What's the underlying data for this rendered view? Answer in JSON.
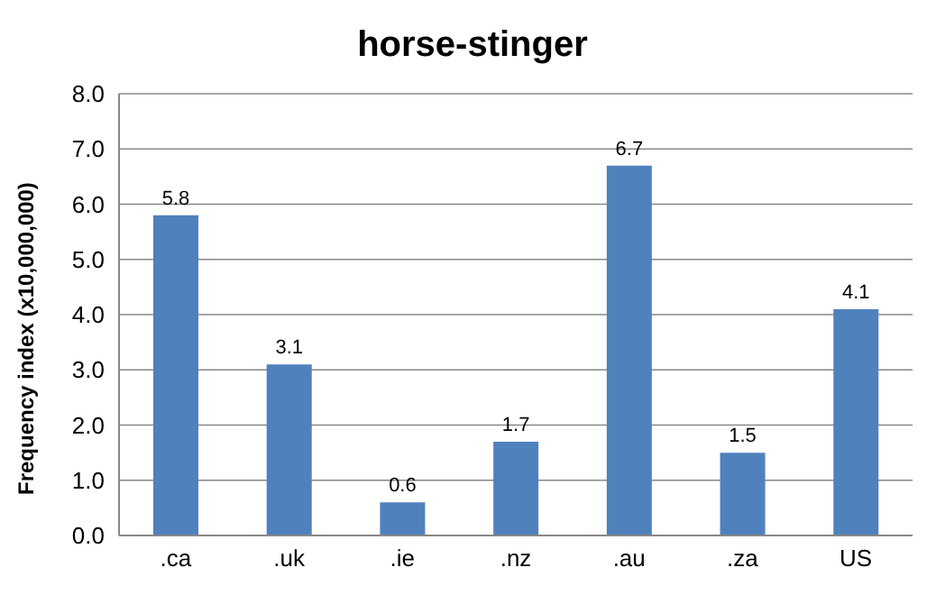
{
  "chart_data": {
    "type": "bar",
    "title": "horse-stinger",
    "ylabel": "Frequency index (x10,000,000)",
    "categories": [
      ".ca",
      ".uk",
      ".ie",
      ".nz",
      ".au",
      ".za",
      "US"
    ],
    "values": [
      5.8,
      3.1,
      0.6,
      1.7,
      6.7,
      1.5,
      4.1
    ],
    "color": "#4f81bd",
    "ylim": [
      0,
      8
    ],
    "yticks": [
      {
        "value": 0,
        "label": "0.0"
      },
      {
        "value": 1,
        "label": "1.0"
      },
      {
        "value": 2,
        "label": "2.0"
      },
      {
        "value": 3,
        "label": "3.0"
      },
      {
        "value": 4,
        "label": "4.0"
      },
      {
        "value": 5,
        "label": "5.0"
      },
      {
        "value": 6,
        "label": "6.0"
      },
      {
        "value": 7,
        "label": "7.0"
      },
      {
        "value": 8,
        "label": "8.0"
      }
    ],
    "grid": "y",
    "data_labels": true,
    "legend": false
  }
}
